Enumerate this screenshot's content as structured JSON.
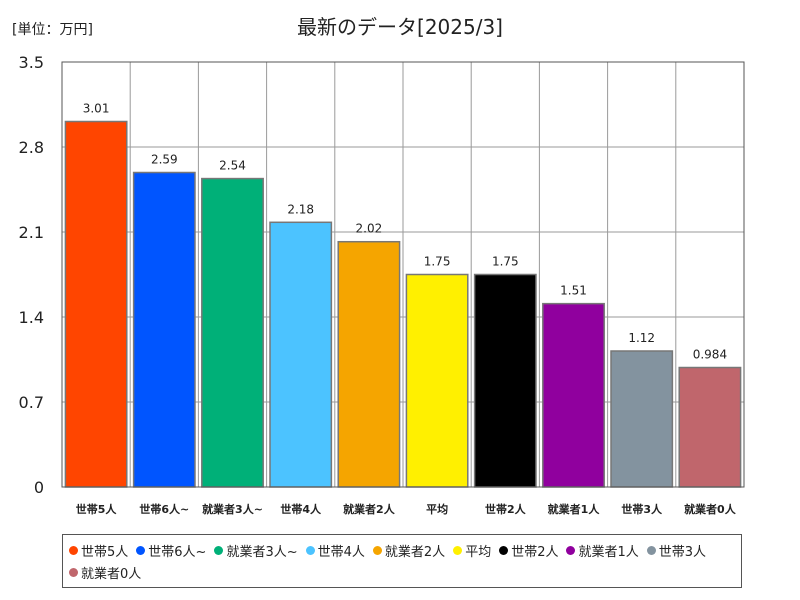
{
  "chart_data": {
    "type": "bar",
    "title": "最新のデータ[2025/3]",
    "unit_label": "[単位：万円]",
    "ylim": [
      0,
      3.5
    ],
    "yticks": [
      "0",
      "0.7",
      "1.4",
      "2.1",
      "2.8",
      "3.5"
    ],
    "ytick_values": [
      0,
      0.7,
      1.4,
      2.1,
      2.8,
      3.5
    ],
    "grid": true,
    "legend_position": "bottom",
    "categories": [
      "世帯5人",
      "世帯6人~",
      "就業者3人~",
      "世帯4人",
      "就業者2人",
      "平均",
      "世帯2人",
      "就業者1人",
      "世帯3人",
      "就業者0人"
    ],
    "values": [
      3.01,
      2.59,
      2.54,
      2.18,
      2.02,
      1.75,
      1.75,
      1.51,
      1.12,
      0.984
    ],
    "value_labels": [
      "3.01",
      "2.59",
      "2.54",
      "2.18",
      "2.02",
      "1.75",
      "1.75",
      "1.51",
      "1.12",
      "0.984"
    ],
    "colors": [
      "#ff4500",
      "#0055ff",
      "#00b078",
      "#4cc3ff",
      "#f5a500",
      "#fff000",
      "#000000",
      "#90009e",
      "#83939f",
      "#c0666c"
    ]
  }
}
